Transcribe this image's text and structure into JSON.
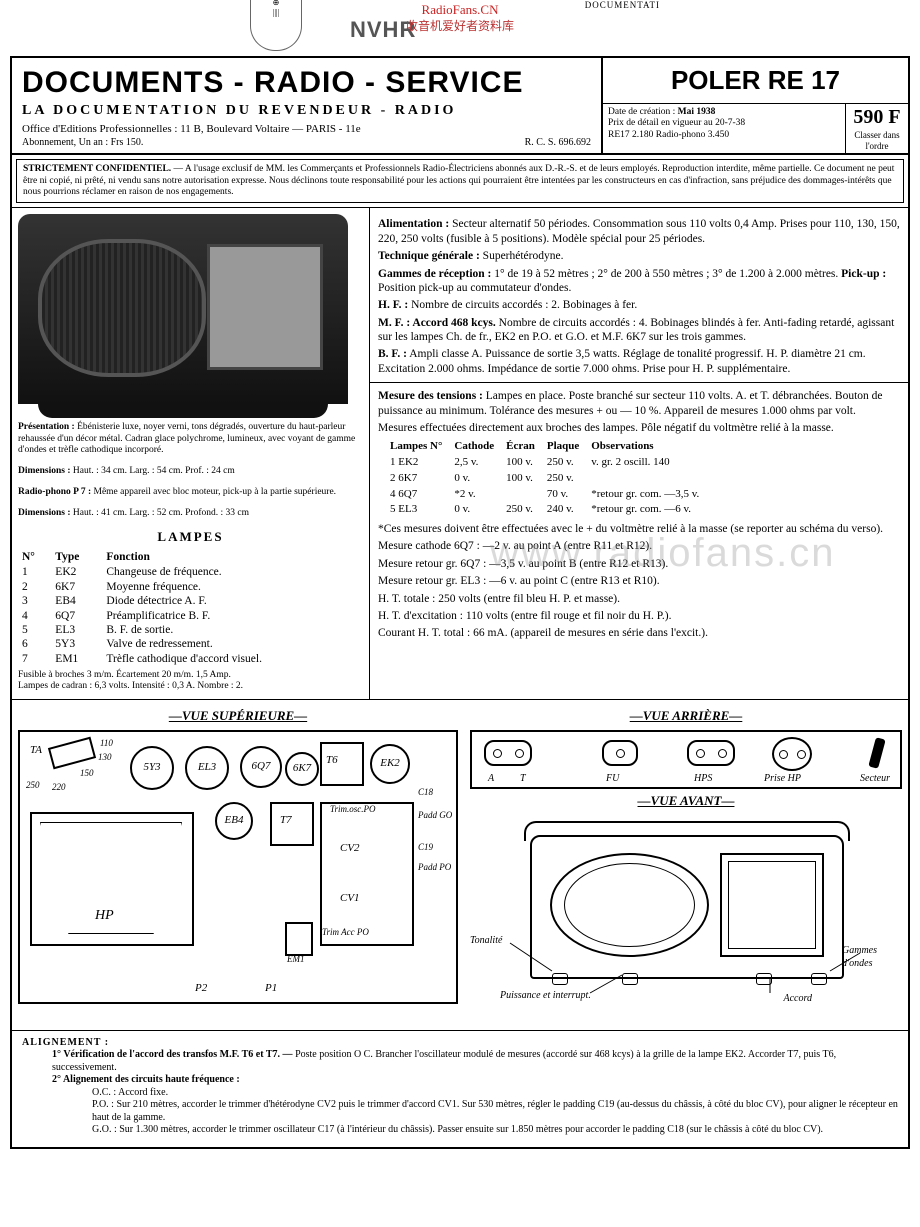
{
  "watermark": {
    "line1": "RadioFans.CN",
    "line2": "收音机爱好者资料库",
    "nvhr": "NVHR",
    "center": "www.radiofans.cn",
    "topright": "DOCUMENTATI"
  },
  "masthead": {
    "title": "DOCUMENTS - RADIO - SERVICE",
    "subtitle": "LA  DOCUMENTATION  DU  REVENDEUR - RADIO",
    "addr": "Office d'Editions Professionnelles : 11 B, Boulevard Voltaire — PARIS - 11e",
    "abon": "Abonnement, Un an : Frs 150.",
    "rcs": "R. C. S. 696.692",
    "model": "POLER RE 17",
    "date_lbl": "Date de création :",
    "date": "Mai 1938",
    "prix1": "Prix de détail en vigueur au 20-7-38",
    "prix2": "RE17 2.180  Radio-phono 3.450",
    "price_big": "590 F",
    "price_small": "Classer dans l'ordre"
  },
  "confidential": "STRICTEMENT CONFIDENTIEL. — A l'usage exclusif de MM. les Commerçants et Professionnels Radio-Électriciens abonnés aux D.-R.-S. et de leurs employés. Reproduction interdite, même partielle. Ce document ne peut être ni copié, ni prêté, ni vendu sans notre autorisation expresse. Nous déclinons toute responsabilité pour les actions qui pourraient être intentées par les constructeurs en cas d'infraction, sans préjudice des dommages-intérêts que nous pourrions réclamer en raison de nos engagements.",
  "left": {
    "pres_lbl": "Présentation :",
    "pres": " Ébénisterie luxe, noyer verni, tons dégradés, ouverture du haut-parleur rehaussée d'un décor métal. Cadran glace polychrome, lumineux, avec voyant de gamme d'ondes et trèfle cathodique incorporé.",
    "dim_lbl": "Dimensions :",
    "dim": " Haut. : 34 cm. Larg. : 54 cm. Prof. : 24 cm",
    "rp_lbl": "Radio-phono P 7 :",
    "rp": " Même appareil avec bloc moteur, pick-up à la partie supérieure.",
    "dim2_lbl": "Dimensions :",
    "dim2": " Haut. : 41 cm. Larg. : 52 cm. Profond. : 33 cm",
    "lampes_title": "LAMPES",
    "th": {
      "n": "N°",
      "type": "Type",
      "fn": "Fonction"
    },
    "rows": [
      {
        "n": "1",
        "t": "EK2",
        "f": "Changeuse de fréquence."
      },
      {
        "n": "2",
        "t": "6K7",
        "f": "Moyenne fréquence."
      },
      {
        "n": "3",
        "t": "EB4",
        "f": "Diode détectrice A. F."
      },
      {
        "n": "4",
        "t": "6Q7",
        "f": "Préamplificatrice B. F."
      },
      {
        "n": "5",
        "t": "EL3",
        "f": "B. F. de sortie."
      },
      {
        "n": "6",
        "t": "5Y3",
        "f": "Valve de redressement."
      },
      {
        "n": "7",
        "t": "EM1",
        "f": "Trèfle cathodique d'accord visuel."
      }
    ],
    "fuse": "Fusible à broches 3 m/m. Écartement 20 m/m. 1,5 Amp.",
    "cadran": "Lampes de cadran : 6,3 volts. Intensité : 0,3 A. Nombre : 2."
  },
  "spec": {
    "alim_lbl": "Alimentation :",
    "alim": " Secteur alternatif 50 périodes. Consommation sous 110 volts 0,4 Amp. Prises pour 110, 130, 150, 220, 250 volts (fusible à 5 positions). Modèle spécial pour 25 périodes.",
    "tech_lbl": "Technique générale :",
    "tech": " Superhétérodyne.",
    "gam_lbl": "Gammes de réception :",
    "gam": " 1° de 19 à 52 mètres ; 2° de 200 à 550 mètres ; 3° de 1.200 à 2.000 mètres. ",
    "pu_lbl": "Pick-up :",
    "pu": " Position pick-up au commutateur d'ondes.",
    "hf_lbl": "H. F. :",
    "hf": " Nombre de circuits accordés : 2. Bobinages à fer.",
    "mf_lbl": "M. F. :",
    "mf_b": " Accord 468 kcys.",
    "mf": " Nombre de circuits accordés : 4. Bobinages blindés à fer. Anti-fading retardé, agissant sur les lampes Ch. de fr., EK2 en P.O. et G.O. et M.F. 6K7 sur les trois gammes.",
    "bf_lbl": "B. F. :",
    "bf": " Ampli classe A. Puissance de sortie 3,5 watts. Réglage de tonalité progressif. H. P. diamètre 21 cm. Excitation 2.000 ohms. Impédance de sortie 7.000 ohms. Prise pour H. P. supplémentaire.",
    "mes_lbl": "Mesure des tensions :",
    "mes": " Lampes en place. Poste branché sur secteur 110 volts. A. et T. débranchées. Bouton de puissance au minimum. Tolérance des mesures + ou — 10 %. Appareil de mesures 1.000 ohms par volt.",
    "mes2": "Mesures effectuées directement aux broches des lampes. Pôle négatif du voltmètre relié à la masse.",
    "th": {
      "n": "Lampes N°",
      "cat": "Cathode",
      "ecr": "Écran",
      "plq": "Plaque",
      "obs": "Observations"
    },
    "rows": [
      {
        "n": "1  EK2",
        "c": "2,5 v.",
        "e": "100 v.",
        "p": "250 v.",
        "o": "v. gr. 2 oscill. 140"
      },
      {
        "n": "2  6K7",
        "c": "0 v.",
        "e": "100 v.",
        "p": "250 v.",
        "o": ""
      },
      {
        "n": "4  6Q7",
        "c": "*2 v.",
        "e": "",
        "p": "70 v.",
        "o": "*retour gr. com. —3,5 v."
      },
      {
        "n": "5  EL3",
        "c": "0 v.",
        "e": "250 v.",
        "p": "240 v.",
        "o": "*retour gr. com. —6 v."
      }
    ],
    "note": "*Ces mesures doivent être effectuées avec le + du voltmètre relié à la masse (se reporter au schéma du verso).",
    "m1": "Mesure cathode 6Q7 : —2 v. au point A (entre R11 et R12).",
    "m2": "Mesure retour gr. 6Q7 : —3,5 v. au point B (entre R12 et R13).",
    "m3": "Mesure retour gr. EL3 : —6 v. au point C (entre R13 et R10).",
    "m4": "H. T. totale : 250 volts (entre fil bleu H. P. et masse).",
    "m5": "H. T. d'excitation : 110 volts (entre fil rouge et fil noir du H. P.).",
    "m6": "Courant H. T. total : 66 mA. (appareil de mesures en série dans l'excit.)."
  },
  "diag": {
    "sup": "—VUE  SUPÉRIEURE—",
    "arr": "—VUE  ARRIÈRE—",
    "av": "—VUE  AVANT—",
    "TA": "TA",
    "v110": "110",
    "v130": "130",
    "v150": "150",
    "v220": "220",
    "v250": "250",
    "t5y3": "5Y3",
    "tel3": "EL3",
    "t6q7": "6Q7",
    "t6k7": "6K7",
    "tek2": "EK2",
    "teb4": "EB4",
    "t6": "T6",
    "t7": "T7",
    "em1": "EM1",
    "hp": "HP",
    "p1": "P1",
    "p2": "P2",
    "trimosc": "Trim.osc.PO",
    "cv1": "CV1",
    "cv2": "CV2",
    "trimacc": "Trim Acc PO",
    "c17": "C17",
    "c18": "C18",
    "c19": "C19",
    "padgo": "Padd GO",
    "padpo": "Padd PO",
    "A": "A",
    "T": "T",
    "FU": "FU",
    "HPS": "HPS",
    "priseHP": "Prise HP",
    "secteur": "Secteur",
    "tonalite": "Tonalité",
    "puiss": "Puissance et interrupt.",
    "accord": "Accord",
    "gammes": "Gammes d'ondes"
  },
  "align": {
    "title": "ALIGNEMENT :",
    "l1_lbl": "1° Vérification de l'accord des transfos M.F. T6 et T7. —",
    "l1": " Poste position O C. Brancher l'oscillateur modulé de mesures (accordé sur 468 kcys) à la grille de la lampe EK2. Accorder T7, puis T6, successivement.",
    "l2_lbl": "2° Alignement des circuits haute fréquence :",
    "oc": "O.C. : Accord fixe.",
    "po": "P.O. : Sur 210 mètres, accorder le trimmer d'hétérodyne CV2 puis le trimmer d'accord CV1. Sur 530 mètres, régler le padding C19 (au-dessus du châssis, à côté du bloc CV), pour aligner le récepteur en haut de la gamme.",
    "go": "G.O. : Sur 1.300 mètres, accorder le trimmer oscillateur C17 (à l'intérieur du châssis). Passer ensuite sur 1.850 mètres pour accorder le padding C18 (sur le châssis à côté du bloc CV)."
  }
}
